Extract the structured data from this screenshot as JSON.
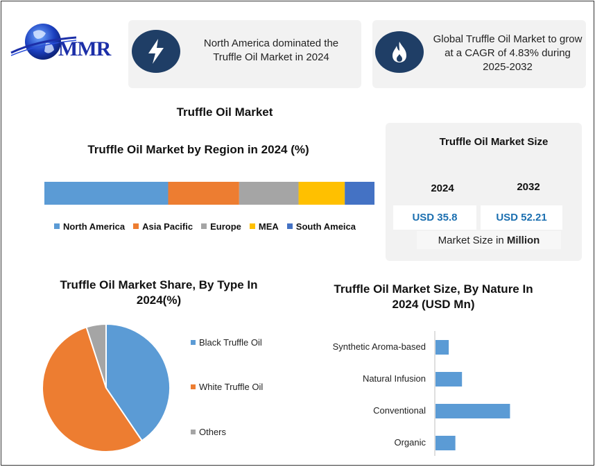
{
  "brand": {
    "logo_text": "MMR"
  },
  "callouts": [
    {
      "text": "North America dominated the Truffle Oil Market in 2024",
      "icon": "lightning-icon"
    },
    {
      "text": "Global Truffle Oil Market to grow at a CAGR of 4.83% during 2025-2032",
      "icon": "flame-icon"
    }
  ],
  "main_title": "Truffle Oil Market",
  "market_size": {
    "title": "Truffle Oil Market Size",
    "year_start": "2024",
    "year_end": "2032",
    "value_start": "USD 35.8",
    "value_end": "USD 52.21",
    "unit_prefix": "Market Size in ",
    "unit_bold": "Million"
  },
  "colors": {
    "accent_dark": "#1f3e66",
    "value_text": "#1b6fb0",
    "card_bg": "#f2f2f2"
  },
  "chart_data": [
    {
      "type": "bar",
      "orientation": "stacked-horizontal",
      "title": "Truffle Oil Market by Region in 2024 (%)",
      "legend_position": "bottom",
      "series": [
        {
          "name": "North America",
          "value": 37.5,
          "color": "#5b9bd5"
        },
        {
          "name": "Asia Pacific",
          "value": 21.5,
          "color": "#ed7d31"
        },
        {
          "name": "Europe",
          "value": 18,
          "color": "#a5a5a5"
        },
        {
          "name": "MEA",
          "value": 14,
          "color": "#ffc000"
        },
        {
          "name": "South Ameica",
          "value": 9,
          "color": "#4472c4"
        }
      ]
    },
    {
      "type": "pie",
      "title": "Truffle Oil Market Share, By Type In 2024(%)",
      "legend_position": "right",
      "slices": [
        {
          "name": "Black Truffle Oil",
          "value": 40.5,
          "color": "#5b9bd5"
        },
        {
          "name": "White Truffle Oil",
          "value": 54.5,
          "color": "#ed7d31"
        },
        {
          "name": "Others",
          "value": 5,
          "color": "#a5a5a5"
        }
      ]
    },
    {
      "type": "bar",
      "orientation": "horizontal",
      "title": "Truffle Oil Market Size, By Nature In 2024 (USD Mn)",
      "grid": false,
      "xlim": [
        0,
        40
      ],
      "categories": [
        "Synthetic Aroma-based",
        "Natural Infusion",
        "Conventional",
        "Organic"
      ],
      "values": [
        4,
        8,
        22.5,
        6
      ],
      "color": "#5b9bd5"
    }
  ]
}
